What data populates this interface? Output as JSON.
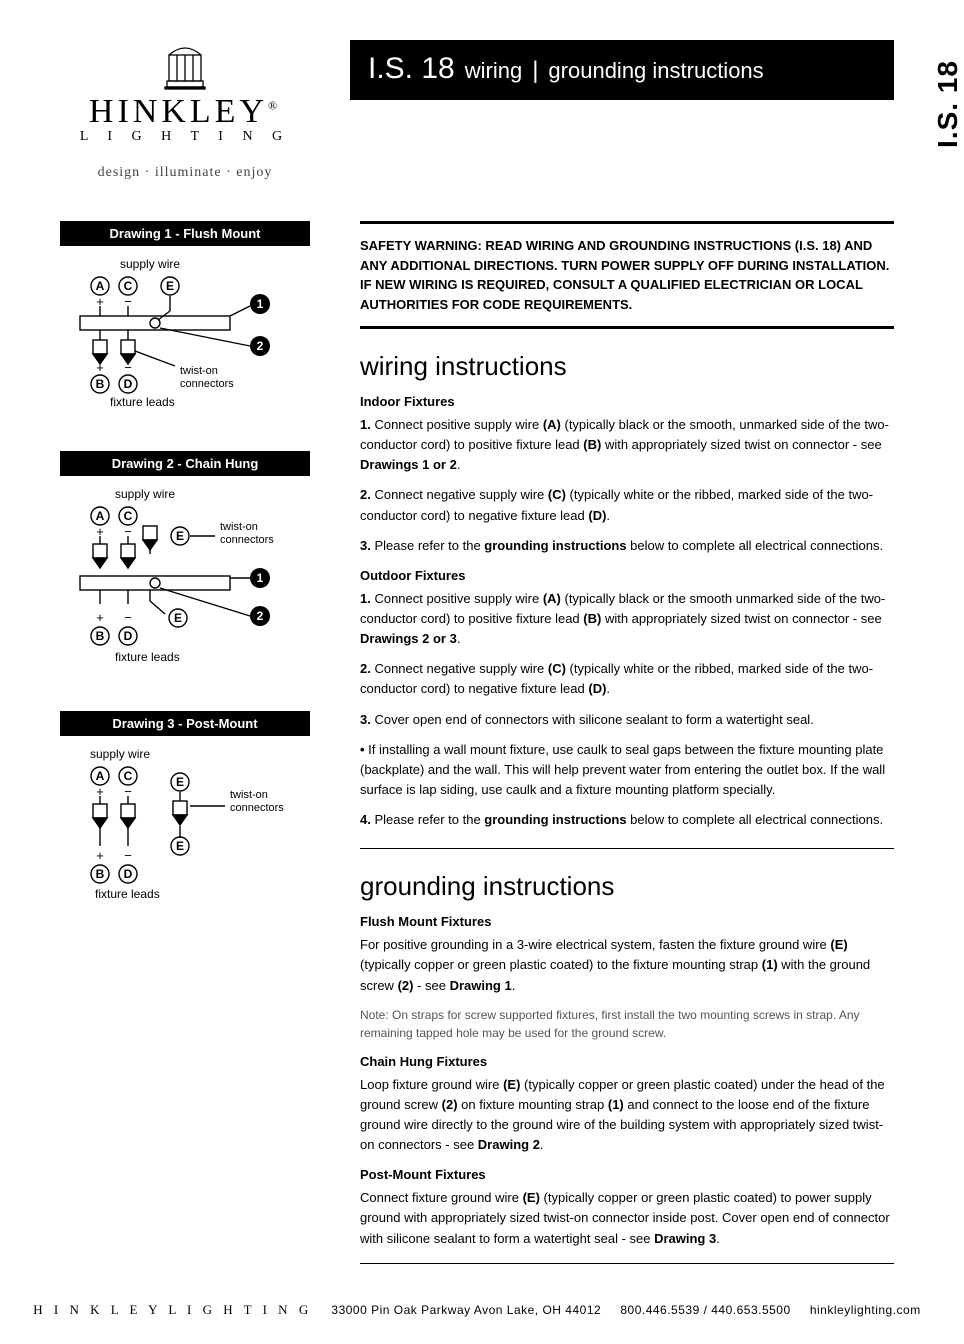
{
  "doc_code": "I.S. 18",
  "brand": {
    "name": "HINKLEY",
    "subline": "L I G H T I N G",
    "tagline": "design · illuminate · enjoy",
    "reg_mark": "®"
  },
  "title_bar": {
    "main": "I.S. 18",
    "sub_left": "wiring",
    "sub_right": "grounding instructions"
  },
  "side_tab": "I.S. 18",
  "warning": "SAFETY WARNING: READ WIRING AND GROUNDING INSTRUCTIONS (I.S. 18) AND ANY ADDITIONAL DIRECTIONS. TURN POWER SUPPLY OFF DURING INSTALLATION. IF NEW WIRING IS REQUIRED, CONSULT A QUALIFIED ELECTRICIAN OR LOCAL AUTHORITIES FOR CODE REQUIREMENTS.",
  "wiring": {
    "heading": "wiring instructions",
    "indoor_h": "Indoor Fixtures",
    "indoor": [
      {
        "n": "1.",
        "t": "Connect positive supply wire <b>(A)</b> (typically black or the smooth, unmarked side of the two-conductor cord) to positive fixture lead <b>(B)</b> with appropriately sized twist on connector - see <b>Drawings 1 or 2</b>."
      },
      {
        "n": "2.",
        "t": "Connect negative supply wire <b>(C)</b> (typically white or the ribbed, marked side of the two-conductor cord) to negative fixture lead <b>(D)</b>."
      },
      {
        "n": "3.",
        "t": "Please refer to the <b>grounding instructions</b> below to complete all electrical connections."
      }
    ],
    "outdoor_h": "Outdoor Fixtures",
    "outdoor": [
      {
        "n": "1.",
        "t": "Connect positive supply wire <b>(A)</b> (typically black or the smooth unmarked side of the two-conductor cord) to positive fixture lead <b>(B)</b> with appropriately sized twist on connector - see <b>Drawings 2 or 3</b>."
      },
      {
        "n": "2.",
        "t": "Connect negative supply wire <b>(C)</b> (typically white or the ribbed, marked side of the two-conductor cord) to negative fixture lead <b>(D)</b>."
      },
      {
        "n": "3.",
        "t": "Cover open end of connectors with silicone sealant to form a watertight seal."
      },
      {
        "n": "•",
        "t": "If installing a wall mount fixture, use caulk to seal gaps between the fixture mounting plate (backplate) and the wall. This will help prevent water from entering the outlet box. If the wall surface is lap siding, use caulk and a fixture mounting platform specially."
      },
      {
        "n": "4.",
        "t": "Please refer to the <b>grounding instructions</b> below to complete all electrical connections."
      }
    ]
  },
  "grounding": {
    "heading": "grounding instructions",
    "flush_h": "Flush Mount Fixtures",
    "flush": "For positive grounding in a 3-wire electrical system, fasten the fixture ground wire <b>(E)</b> (typically copper or green plastic coated) to the fixture mounting strap <b>(1)</b> with the ground screw <b>(2)</b> - see <b>Drawing 1</b>.",
    "flush_note": "Note: On straps for screw supported fixtures, first install the two mounting screws in strap. Any remaining tapped hole may be used for the ground screw.",
    "chain_h": "Chain Hung Fixtures",
    "chain": "Loop fixture ground wire <b>(E)</b> (typically copper or green plastic coated) under the head of the ground screw <b>(2)</b> on fixture mounting strap <b>(1)</b> and connect to the loose end of the fixture ground wire directly to the ground wire of the building system with appropriately sized twist-on connectors - see <b>Drawing 2</b>.",
    "post_h": "Post-Mount Fixtures",
    "post": "Connect fixture ground wire <b>(E)</b> (typically copper or green plastic coated) to power supply ground with appropriately sized twist-on connector inside post. Cover open end of connector with silicone sealant to form a watertight seal - see <b>Drawing 3</b>."
  },
  "drawings": [
    {
      "title": "Drawing 1 - Flush Mount"
    },
    {
      "title": "Drawing 2 - Chain Hung"
    },
    {
      "title": "Drawing 3 - Post-Mount"
    }
  ],
  "diagram_labels": {
    "supply_wire": "supply wire",
    "fixture_leads": "fixture leads",
    "twist_on": "twist-on",
    "connectors": "connectors",
    "A": "A",
    "B": "B",
    "C": "C",
    "D": "D",
    "E": "E",
    "one": "1",
    "two": "2",
    "plus": "+",
    "minus": "−"
  },
  "footer": {
    "brand": "H I N K L E Y   L I G H T I N G",
    "addr": "33000 Pin Oak Parkway   Avon Lake, OH  44012",
    "phone": "800.446.5539 / 440.653.5500",
    "site": "hinkleylighting.com"
  },
  "colors": {
    "black": "#000000",
    "white": "#ffffff",
    "note_gray": "#555555"
  },
  "typography": {
    "body_pt": 13,
    "h2_pt": 26,
    "title_main_pt": 30,
    "title_sub_pt": 22,
    "brand_pt": 34,
    "drawing_title_pt": 13,
    "footer_pt": 12
  }
}
